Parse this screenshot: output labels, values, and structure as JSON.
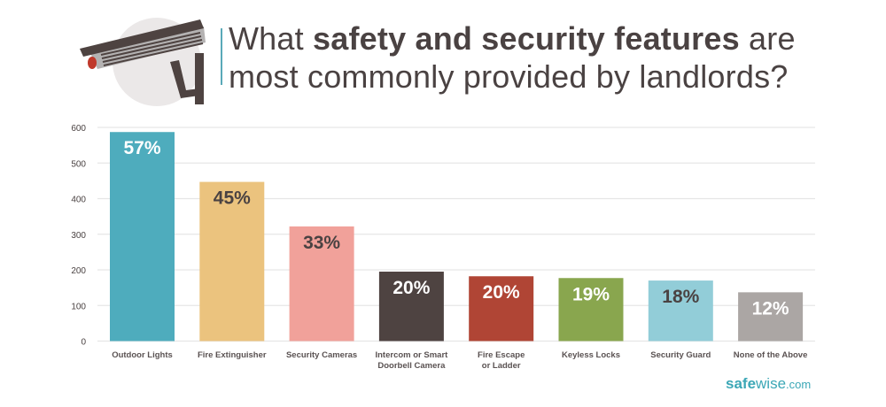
{
  "header": {
    "title_part1": "What ",
    "title_bold": "safety and security features",
    "title_part2": " are",
    "title_line2": "most commonly provided by landlords?",
    "icon": "security-camera-icon"
  },
  "colors": {
    "text": "#4a4242",
    "grid": "#e6e6e6",
    "accent": "#3ba7b6"
  },
  "logo": {
    "bold": "safe",
    "regular": "wise",
    "suffix": ".com"
  },
  "chart_data": {
    "type": "bar",
    "title": "What safety and security features are most commonly provided by landlords?",
    "xlabel": "",
    "ylabel": "",
    "ylim": [
      0,
      600
    ],
    "yticks": [
      0,
      100,
      200,
      300,
      400,
      500,
      600
    ],
    "grid": true,
    "legend": "none",
    "categories": [
      [
        "Outdoor Lights"
      ],
      [
        "Fire Extinguisher"
      ],
      [
        "Security Cameras"
      ],
      [
        "Intercom or Smart",
        "Doorbell Camera"
      ],
      [
        "Fire Escape",
        "or Ladder"
      ],
      [
        "Keyless Locks"
      ],
      [
        "Security Guard"
      ],
      [
        "None of the Above"
      ]
    ],
    "values": [
      587,
      447,
      322,
      195,
      182,
      177,
      170,
      137
    ],
    "data_labels": [
      "57%",
      "45%",
      "33%",
      "20%",
      "20%",
      "19%",
      "18%",
      "12%"
    ],
    "bar_colors": [
      "#4eacbd",
      "#ebc37e",
      "#f1a19a",
      "#4e4341",
      "#b04535",
      "#89a64e",
      "#92cdd8",
      "#aba6a4"
    ],
    "label_colors": [
      "#ffffff",
      "#4a4242",
      "#4a4242",
      "#ffffff",
      "#ffffff",
      "#ffffff",
      "#4a4242",
      "#ffffff"
    ]
  }
}
